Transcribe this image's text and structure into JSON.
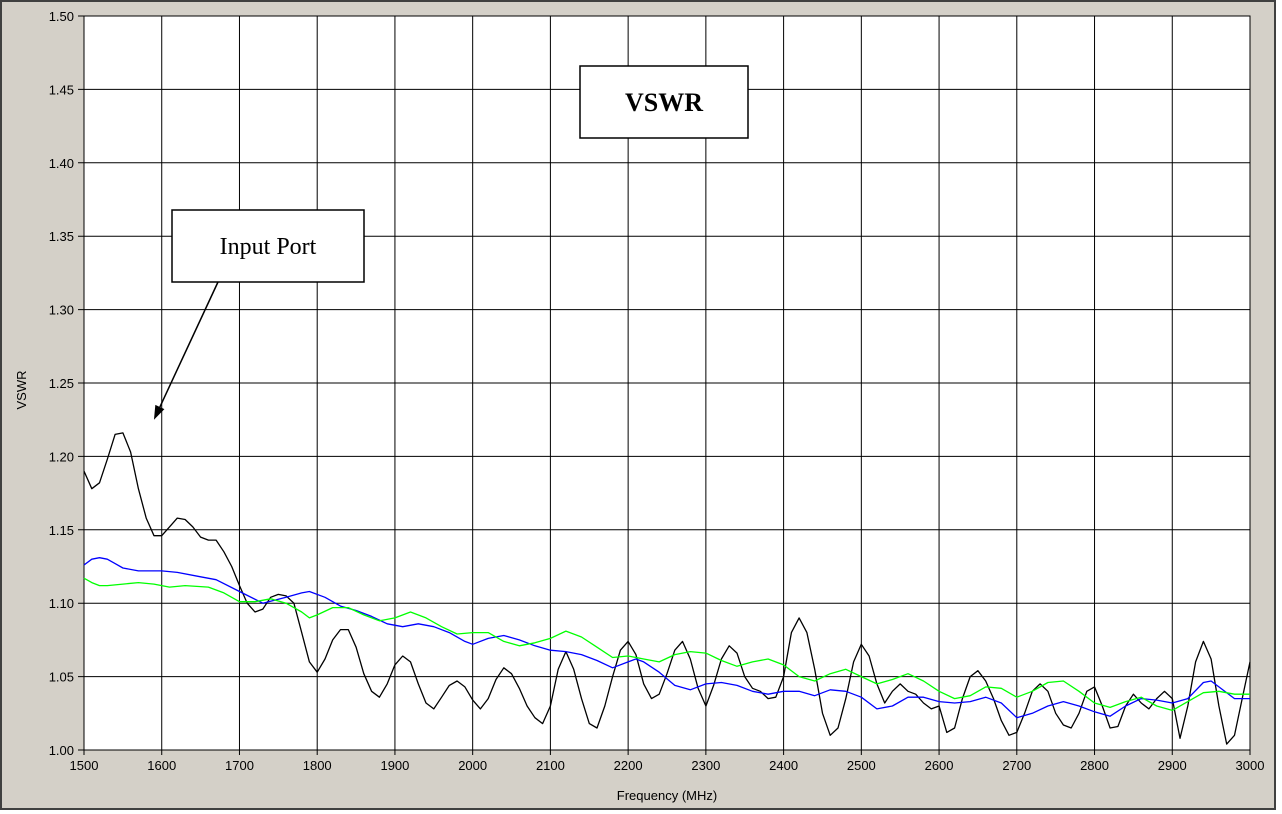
{
  "chart_data": {
    "type": "line",
    "title": "VSWR",
    "xlabel": "Frequency (MHz)",
    "ylabel": "VSWR",
    "xlim": [
      1500,
      3000
    ],
    "ylim": [
      1.0,
      1.5
    ],
    "x_ticks": [
      "1500",
      "1600",
      "1700",
      "1800",
      "1900",
      "2000",
      "2100",
      "2200",
      "2300",
      "2400",
      "2500",
      "2600",
      "2700",
      "2800",
      "2900",
      "3000"
    ],
    "y_ticks": [
      "1.00",
      "1.05",
      "1.10",
      "1.15",
      "1.20",
      "1.25",
      "1.30",
      "1.35",
      "1.40",
      "1.45",
      "1.50"
    ],
    "grid": true,
    "annotations": [
      {
        "text": "Input Port",
        "points_to": {
          "x": 1590,
          "y": 1.225
        }
      }
    ],
    "series": [
      {
        "color": "#000000",
        "points": [
          [
            1500,
            1.19
          ],
          [
            1510,
            1.178
          ],
          [
            1520,
            1.182
          ],
          [
            1530,
            1.198
          ],
          [
            1540,
            1.215
          ],
          [
            1550,
            1.216
          ],
          [
            1560,
            1.203
          ],
          [
            1570,
            1.178
          ],
          [
            1580,
            1.158
          ],
          [
            1590,
            1.146
          ],
          [
            1600,
            1.146
          ],
          [
            1610,
            1.152
          ],
          [
            1620,
            1.158
          ],
          [
            1630,
            1.157
          ],
          [
            1640,
            1.152
          ],
          [
            1650,
            1.145
          ],
          [
            1660,
            1.143
          ],
          [
            1670,
            1.143
          ],
          [
            1680,
            1.135
          ],
          [
            1690,
            1.125
          ],
          [
            1700,
            1.112
          ],
          [
            1710,
            1.1
          ],
          [
            1720,
            1.094
          ],
          [
            1730,
            1.096
          ],
          [
            1740,
            1.104
          ],
          [
            1750,
            1.106
          ],
          [
            1760,
            1.105
          ],
          [
            1770,
            1.1
          ],
          [
            1780,
            1.08
          ],
          [
            1790,
            1.06
          ],
          [
            1800,
            1.053
          ],
          [
            1810,
            1.062
          ],
          [
            1820,
            1.075
          ],
          [
            1830,
            1.082
          ],
          [
            1840,
            1.082
          ],
          [
            1850,
            1.07
          ],
          [
            1860,
            1.052
          ],
          [
            1870,
            1.04
          ],
          [
            1880,
            1.036
          ],
          [
            1890,
            1.045
          ],
          [
            1900,
            1.058
          ],
          [
            1910,
            1.064
          ],
          [
            1920,
            1.06
          ],
          [
            1930,
            1.045
          ],
          [
            1940,
            1.032
          ],
          [
            1950,
            1.028
          ],
          [
            1960,
            1.036
          ],
          [
            1970,
            1.044
          ],
          [
            1980,
            1.047
          ],
          [
            1990,
            1.043
          ],
          [
            2000,
            1.034
          ],
          [
            2010,
            1.028
          ],
          [
            2020,
            1.035
          ],
          [
            2030,
            1.048
          ],
          [
            2040,
            1.056
          ],
          [
            2050,
            1.052
          ],
          [
            2060,
            1.042
          ],
          [
            2070,
            1.03
          ],
          [
            2080,
            1.022
          ],
          [
            2090,
            1.018
          ],
          [
            2100,
            1.03
          ],
          [
            2110,
            1.055
          ],
          [
            2120,
            1.067
          ],
          [
            2130,
            1.055
          ],
          [
            2140,
            1.035
          ],
          [
            2150,
            1.018
          ],
          [
            2160,
            1.015
          ],
          [
            2170,
            1.03
          ],
          [
            2180,
            1.05
          ],
          [
            2190,
            1.068
          ],
          [
            2200,
            1.074
          ],
          [
            2210,
            1.065
          ],
          [
            2220,
            1.045
          ],
          [
            2230,
            1.035
          ],
          [
            2240,
            1.038
          ],
          [
            2250,
            1.052
          ],
          [
            2260,
            1.068
          ],
          [
            2270,
            1.074
          ],
          [
            2280,
            1.062
          ],
          [
            2290,
            1.042
          ],
          [
            2300,
            1.03
          ],
          [
            2310,
            1.044
          ],
          [
            2320,
            1.062
          ],
          [
            2330,
            1.071
          ],
          [
            2340,
            1.066
          ],
          [
            2350,
            1.05
          ],
          [
            2360,
            1.042
          ],
          [
            2370,
            1.04
          ],
          [
            2380,
            1.035
          ],
          [
            2390,
            1.036
          ],
          [
            2400,
            1.05
          ],
          [
            2410,
            1.08
          ],
          [
            2420,
            1.09
          ],
          [
            2430,
            1.08
          ],
          [
            2440,
            1.055
          ],
          [
            2450,
            1.025
          ],
          [
            2460,
            1.01
          ],
          [
            2470,
            1.015
          ],
          [
            2480,
            1.035
          ],
          [
            2490,
            1.06
          ],
          [
            2500,
            1.072
          ],
          [
            2510,
            1.064
          ],
          [
            2520,
            1.045
          ],
          [
            2530,
            1.032
          ],
          [
            2540,
            1.04
          ],
          [
            2550,
            1.045
          ],
          [
            2560,
            1.04
          ],
          [
            2570,
            1.038
          ],
          [
            2580,
            1.032
          ],
          [
            2590,
            1.028
          ],
          [
            2600,
            1.03
          ],
          [
            2610,
            1.012
          ],
          [
            2620,
            1.015
          ],
          [
            2630,
            1.035
          ],
          [
            2640,
            1.05
          ],
          [
            2650,
            1.054
          ],
          [
            2660,
            1.047
          ],
          [
            2670,
            1.035
          ],
          [
            2680,
            1.02
          ],
          [
            2690,
            1.01
          ],
          [
            2700,
            1.012
          ],
          [
            2710,
            1.025
          ],
          [
            2720,
            1.04
          ],
          [
            2730,
            1.045
          ],
          [
            2740,
            1.04
          ],
          [
            2750,
            1.025
          ],
          [
            2760,
            1.017
          ],
          [
            2770,
            1.015
          ],
          [
            2780,
            1.025
          ],
          [
            2790,
            1.04
          ],
          [
            2800,
            1.043
          ],
          [
            2810,
            1.03
          ],
          [
            2820,
            1.015
          ],
          [
            2830,
            1.016
          ],
          [
            2840,
            1.03
          ],
          [
            2850,
            1.038
          ],
          [
            2860,
            1.032
          ],
          [
            2870,
            1.028
          ],
          [
            2880,
            1.035
          ],
          [
            2890,
            1.04
          ],
          [
            2900,
            1.035
          ],
          [
            2910,
            1.008
          ],
          [
            2920,
            1.03
          ],
          [
            2930,
            1.06
          ],
          [
            2940,
            1.074
          ],
          [
            2950,
            1.062
          ],
          [
            2960,
            1.03
          ],
          [
            2970,
            1.004
          ],
          [
            2980,
            1.01
          ],
          [
            2990,
            1.035
          ],
          [
            3000,
            1.06
          ]
        ]
      },
      {
        "color": "#0000ff",
        "points": [
          [
            1500,
            1.126
          ],
          [
            1510,
            1.13
          ],
          [
            1520,
            1.131
          ],
          [
            1530,
            1.13
          ],
          [
            1540,
            1.127
          ],
          [
            1550,
            1.124
          ],
          [
            1570,
            1.122
          ],
          [
            1600,
            1.122
          ],
          [
            1620,
            1.121
          ],
          [
            1650,
            1.118
          ],
          [
            1670,
            1.116
          ],
          [
            1700,
            1.108
          ],
          [
            1730,
            1.1
          ],
          [
            1760,
            1.104
          ],
          [
            1780,
            1.107
          ],
          [
            1790,
            1.108
          ],
          [
            1810,
            1.104
          ],
          [
            1830,
            1.098
          ],
          [
            1850,
            1.095
          ],
          [
            1870,
            1.091
          ],
          [
            1890,
            1.086
          ],
          [
            1910,
            1.084
          ],
          [
            1930,
            1.086
          ],
          [
            1950,
            1.084
          ],
          [
            1970,
            1.08
          ],
          [
            1990,
            1.074
          ],
          [
            2000,
            1.072
          ],
          [
            2020,
            1.076
          ],
          [
            2040,
            1.078
          ],
          [
            2060,
            1.075
          ],
          [
            2080,
            1.071
          ],
          [
            2100,
            1.068
          ],
          [
            2120,
            1.067
          ],
          [
            2140,
            1.065
          ],
          [
            2160,
            1.061
          ],
          [
            2180,
            1.056
          ],
          [
            2200,
            1.06
          ],
          [
            2210,
            1.062
          ],
          [
            2220,
            1.06
          ],
          [
            2240,
            1.053
          ],
          [
            2260,
            1.044
          ],
          [
            2280,
            1.041
          ],
          [
            2300,
            1.045
          ],
          [
            2320,
            1.046
          ],
          [
            2340,
            1.044
          ],
          [
            2360,
            1.04
          ],
          [
            2380,
            1.038
          ],
          [
            2400,
            1.04
          ],
          [
            2420,
            1.04
          ],
          [
            2440,
            1.037
          ],
          [
            2460,
            1.041
          ],
          [
            2480,
            1.04
          ],
          [
            2500,
            1.036
          ],
          [
            2520,
            1.028
          ],
          [
            2540,
            1.03
          ],
          [
            2560,
            1.036
          ],
          [
            2580,
            1.036
          ],
          [
            2600,
            1.033
          ],
          [
            2620,
            1.032
          ],
          [
            2640,
            1.033
          ],
          [
            2660,
            1.036
          ],
          [
            2680,
            1.032
          ],
          [
            2700,
            1.022
          ],
          [
            2720,
            1.025
          ],
          [
            2740,
            1.03
          ],
          [
            2760,
            1.033
          ],
          [
            2780,
            1.03
          ],
          [
            2800,
            1.026
          ],
          [
            2820,
            1.023
          ],
          [
            2840,
            1.03
          ],
          [
            2860,
            1.035
          ],
          [
            2880,
            1.034
          ],
          [
            2900,
            1.032
          ],
          [
            2920,
            1.035
          ],
          [
            2940,
            1.046
          ],
          [
            2950,
            1.047
          ],
          [
            2960,
            1.043
          ],
          [
            2980,
            1.035
          ],
          [
            3000,
            1.035
          ]
        ]
      },
      {
        "color": "#00ff00",
        "points": [
          [
            1500,
            1.117
          ],
          [
            1510,
            1.114
          ],
          [
            1520,
            1.112
          ],
          [
            1530,
            1.112
          ],
          [
            1550,
            1.113
          ],
          [
            1570,
            1.114
          ],
          [
            1590,
            1.113
          ],
          [
            1610,
            1.111
          ],
          [
            1630,
            1.112
          ],
          [
            1660,
            1.111
          ],
          [
            1680,
            1.107
          ],
          [
            1700,
            1.101
          ],
          [
            1720,
            1.101
          ],
          [
            1740,
            1.103
          ],
          [
            1760,
            1.1
          ],
          [
            1780,
            1.094
          ],
          [
            1790,
            1.09
          ],
          [
            1800,
            1.092
          ],
          [
            1820,
            1.097
          ],
          [
            1840,
            1.097
          ],
          [
            1860,
            1.092
          ],
          [
            1880,
            1.088
          ],
          [
            1900,
            1.09
          ],
          [
            1920,
            1.094
          ],
          [
            1940,
            1.09
          ],
          [
            1960,
            1.084
          ],
          [
            1980,
            1.079
          ],
          [
            2000,
            1.08
          ],
          [
            2020,
            1.08
          ],
          [
            2040,
            1.074
          ],
          [
            2060,
            1.071
          ],
          [
            2080,
            1.073
          ],
          [
            2100,
            1.076
          ],
          [
            2120,
            1.081
          ],
          [
            2140,
            1.077
          ],
          [
            2160,
            1.07
          ],
          [
            2180,
            1.063
          ],
          [
            2200,
            1.064
          ],
          [
            2220,
            1.062
          ],
          [
            2240,
            1.06
          ],
          [
            2260,
            1.065
          ],
          [
            2280,
            1.067
          ],
          [
            2300,
            1.066
          ],
          [
            2320,
            1.061
          ],
          [
            2340,
            1.057
          ],
          [
            2360,
            1.06
          ],
          [
            2380,
            1.062
          ],
          [
            2400,
            1.058
          ],
          [
            2420,
            1.05
          ],
          [
            2440,
            1.047
          ],
          [
            2460,
            1.052
          ],
          [
            2480,
            1.055
          ],
          [
            2500,
            1.05
          ],
          [
            2520,
            1.045
          ],
          [
            2540,
            1.048
          ],
          [
            2560,
            1.052
          ],
          [
            2580,
            1.047
          ],
          [
            2600,
            1.04
          ],
          [
            2620,
            1.035
          ],
          [
            2640,
            1.037
          ],
          [
            2660,
            1.043
          ],
          [
            2680,
            1.042
          ],
          [
            2700,
            1.036
          ],
          [
            2720,
            1.04
          ],
          [
            2740,
            1.046
          ],
          [
            2760,
            1.047
          ],
          [
            2780,
            1.04
          ],
          [
            2800,
            1.032
          ],
          [
            2820,
            1.029
          ],
          [
            2840,
            1.033
          ],
          [
            2860,
            1.036
          ],
          [
            2880,
            1.03
          ],
          [
            2900,
            1.027
          ],
          [
            2920,
            1.033
          ],
          [
            2940,
            1.039
          ],
          [
            2960,
            1.04
          ],
          [
            2980,
            1.038
          ],
          [
            3000,
            1.038
          ]
        ]
      }
    ]
  }
}
